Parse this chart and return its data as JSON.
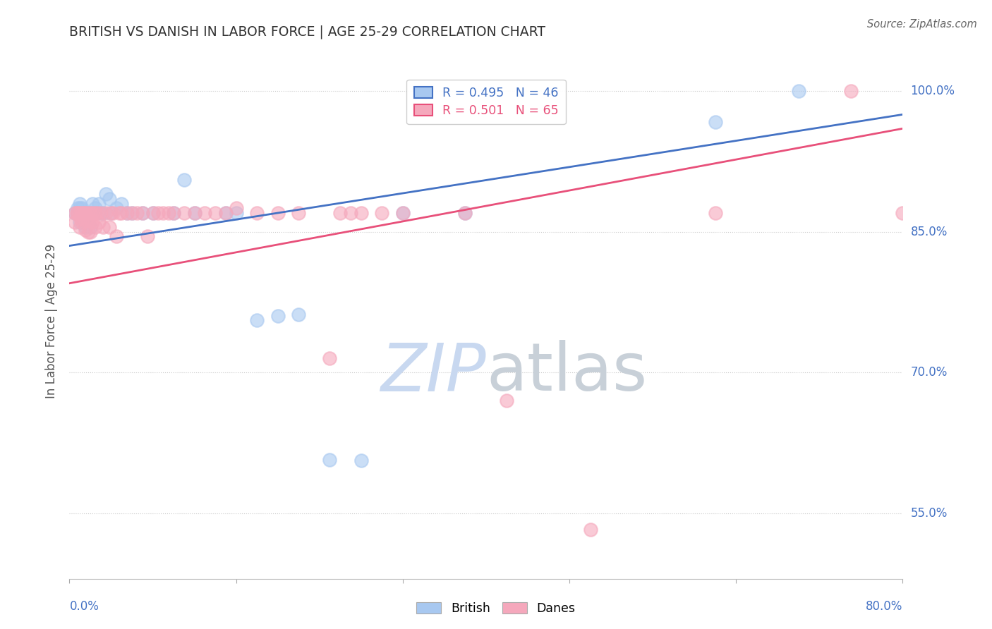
{
  "title": "BRITISH VS DANISH IN LABOR FORCE | AGE 25-29 CORRELATION CHART",
  "ylabel_label": "In Labor Force | Age 25-29",
  "source": "Source: ZipAtlas.com",
  "legend_british": "British",
  "legend_danes": "Danes",
  "r_british": 0.495,
  "n_british": 46,
  "r_danes": 0.501,
  "n_danes": 65,
  "x_min": 0.0,
  "x_max": 0.8,
  "y_min": 0.48,
  "y_max": 1.03,
  "y_ticks": [
    0.55,
    0.7,
    0.85,
    1.0
  ],
  "y_tick_labels": [
    "55.0%",
    "70.0%",
    "85.0%",
    "100.0%"
  ],
  "gridline_color": "#cccccc",
  "bg_color": "#ffffff",
  "british_color": "#A8C8F0",
  "danes_color": "#F5A8BC",
  "british_line_color": "#4472C4",
  "danes_line_color": "#E8507A",
  "title_color": "#333333",
  "axis_label_color": "#4472C4",
  "watermark_zip_color": "#C8D8F0",
  "watermark_atlas_color": "#C8D0D8",
  "british_x": [
    0.005,
    0.008,
    0.008,
    0.01,
    0.01,
    0.01,
    0.01,
    0.012,
    0.012,
    0.015,
    0.015,
    0.015,
    0.018,
    0.018,
    0.02,
    0.02,
    0.022,
    0.022,
    0.025,
    0.025,
    0.028,
    0.03,
    0.032,
    0.035,
    0.038,
    0.04,
    0.045,
    0.05,
    0.055,
    0.06,
    0.07,
    0.08,
    0.1,
    0.11,
    0.12,
    0.15,
    0.16,
    0.18,
    0.2,
    0.22,
    0.25,
    0.28,
    0.32,
    0.38,
    0.62,
    0.7
  ],
  "british_y": [
    0.87,
    0.875,
    0.87,
    0.88,
    0.875,
    0.87,
    0.86,
    0.875,
    0.865,
    0.87,
    0.865,
    0.855,
    0.87,
    0.86,
    0.87,
    0.855,
    0.88,
    0.87,
    0.875,
    0.87,
    0.88,
    0.87,
    0.87,
    0.89,
    0.885,
    0.87,
    0.875,
    0.88,
    0.87,
    0.87,
    0.87,
    0.87,
    0.87,
    0.905,
    0.87,
    0.87,
    0.87,
    0.756,
    0.76,
    0.762,
    0.607,
    0.606,
    0.87,
    0.87,
    0.967,
    1.0
  ],
  "danes_x": [
    0.005,
    0.005,
    0.007,
    0.008,
    0.01,
    0.01,
    0.01,
    0.012,
    0.012,
    0.014,
    0.015,
    0.015,
    0.015,
    0.017,
    0.018,
    0.018,
    0.02,
    0.02,
    0.02,
    0.022,
    0.022,
    0.025,
    0.025,
    0.027,
    0.028,
    0.03,
    0.032,
    0.035,
    0.038,
    0.04,
    0.042,
    0.045,
    0.048,
    0.05,
    0.055,
    0.06,
    0.065,
    0.07,
    0.075,
    0.08,
    0.085,
    0.09,
    0.095,
    0.1,
    0.11,
    0.12,
    0.13,
    0.14,
    0.15,
    0.16,
    0.18,
    0.2,
    0.22,
    0.25,
    0.26,
    0.27,
    0.28,
    0.3,
    0.32,
    0.38,
    0.42,
    0.5,
    0.62,
    0.75,
    0.8
  ],
  "danes_y": [
    0.87,
    0.86,
    0.87,
    0.87,
    0.87,
    0.865,
    0.855,
    0.87,
    0.86,
    0.87,
    0.87,
    0.862,
    0.852,
    0.87,
    0.862,
    0.85,
    0.87,
    0.862,
    0.85,
    0.87,
    0.86,
    0.87,
    0.855,
    0.87,
    0.86,
    0.87,
    0.855,
    0.87,
    0.855,
    0.87,
    0.87,
    0.845,
    0.87,
    0.87,
    0.87,
    0.87,
    0.87,
    0.87,
    0.845,
    0.87,
    0.87,
    0.87,
    0.87,
    0.87,
    0.87,
    0.87,
    0.87,
    0.87,
    0.87,
    0.875,
    0.87,
    0.87,
    0.87,
    0.715,
    0.87,
    0.87,
    0.87,
    0.87,
    0.87,
    0.87,
    0.67,
    0.532,
    0.87,
    1.0,
    0.87
  ],
  "brit_line_x0": 0.0,
  "brit_line_y0": 0.835,
  "brit_line_x1": 0.8,
  "brit_line_y1": 0.975,
  "dane_line_x0": 0.0,
  "dane_line_y0": 0.795,
  "dane_line_x1": 0.8,
  "dane_line_y1": 0.96
}
